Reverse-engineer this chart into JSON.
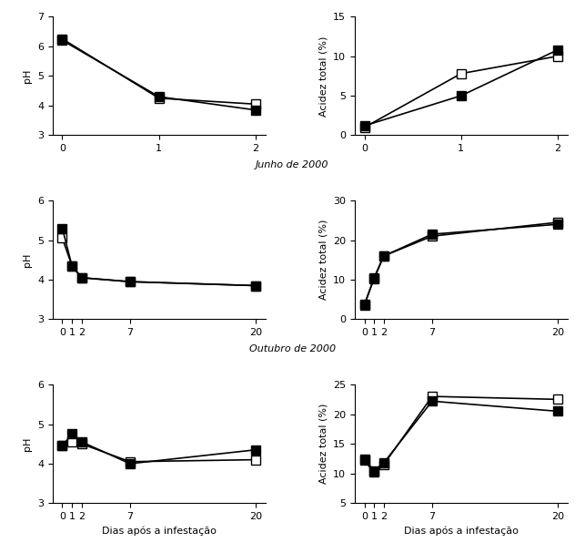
{
  "row1": {
    "x": [
      0,
      1,
      2
    ],
    "ph_open": [
      6.25,
      4.25,
      4.05
    ],
    "ph_filled": [
      6.2,
      4.3,
      3.85
    ],
    "acid_open": [
      1.0,
      7.8,
      10.0
    ],
    "acid_filled": [
      1.2,
      5.0,
      10.8
    ],
    "ph_ylim": [
      3,
      7
    ],
    "ph_yticks": [
      3,
      4,
      5,
      6,
      7
    ],
    "acid_ylim": [
      0,
      15
    ],
    "acid_yticks": [
      0,
      5,
      10,
      15
    ]
  },
  "row2": {
    "label": "Junho de 2000",
    "x": [
      0,
      1,
      2,
      7,
      20
    ],
    "ph_open": [
      5.05,
      4.35,
      4.05,
      3.95,
      3.85
    ],
    "ph_filled": [
      5.3,
      4.35,
      4.05,
      3.95,
      3.85
    ],
    "acid_open": [
      3.5,
      10.5,
      16.0,
      21.0,
      24.5
    ],
    "acid_filled": [
      3.8,
      10.2,
      16.0,
      21.5,
      24.0
    ],
    "ph_ylim": [
      3,
      6
    ],
    "ph_yticks": [
      3,
      4,
      5,
      6
    ],
    "acid_ylim": [
      0,
      30
    ],
    "acid_yticks": [
      0,
      10,
      20,
      30
    ]
  },
  "row3": {
    "label": "Outubro de 2000",
    "x": [
      0,
      1,
      2,
      7,
      20
    ],
    "ph_open": [
      4.45,
      4.55,
      4.5,
      4.05,
      4.1
    ],
    "ph_filled": [
      4.45,
      4.75,
      4.55,
      4.0,
      4.35
    ],
    "acid_open": [
      12.2,
      10.2,
      11.5,
      23.0,
      22.5
    ],
    "acid_filled": [
      12.5,
      10.5,
      11.8,
      22.2,
      20.5
    ],
    "ph_ylim": [
      3,
      6
    ],
    "ph_yticks": [
      3,
      4,
      5,
      6
    ],
    "acid_ylim": [
      5,
      25
    ],
    "acid_yticks": [
      5,
      10,
      15,
      20,
      25
    ]
  },
  "open_marker": "s",
  "filled_marker": "s",
  "open_color": "white",
  "filled_color": "black",
  "line_color": "black",
  "marker_size": 7,
  "linewidth": 1.2,
  "xlabel": "Dias após a infestação",
  "ylabel_ph": "pH",
  "ylabel_acid": "Acidez total (%)"
}
